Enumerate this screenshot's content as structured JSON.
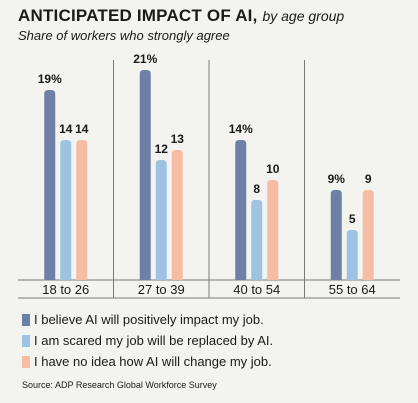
{
  "chart_data": {
    "type": "bar",
    "title": "ANTICIPATED IMPACT OF AI,",
    "title_suffix": "by age group",
    "subtitle": "Share of workers who strongly agree",
    "categories": [
      "18 to 26",
      "27 to 39",
      "40 to 54",
      "55 to 64"
    ],
    "series": [
      {
        "name": "I believe AI will positively impact my job.",
        "values": [
          19,
          21,
          14,
          9
        ],
        "labels": [
          "19%",
          "21%",
          "14%",
          "9%"
        ],
        "color": "#6f7fa6"
      },
      {
        "name": "I am scared my job will be replaced by AI.",
        "values": [
          14,
          12,
          8,
          5
        ],
        "labels": [
          "14",
          "12",
          "8",
          "5"
        ],
        "color": "#9ec3e2"
      },
      {
        "name": "I have no idea how AI will change my job.",
        "values": [
          14,
          13,
          10,
          9
        ],
        "labels": [
          "14",
          "13",
          "10",
          "9"
        ],
        "color": "#f7bca4"
      }
    ],
    "ylim": [
      0,
      22
    ],
    "grid": false,
    "legend": "bottom"
  },
  "source": "Source: ADP Research Global Workforce Survey"
}
